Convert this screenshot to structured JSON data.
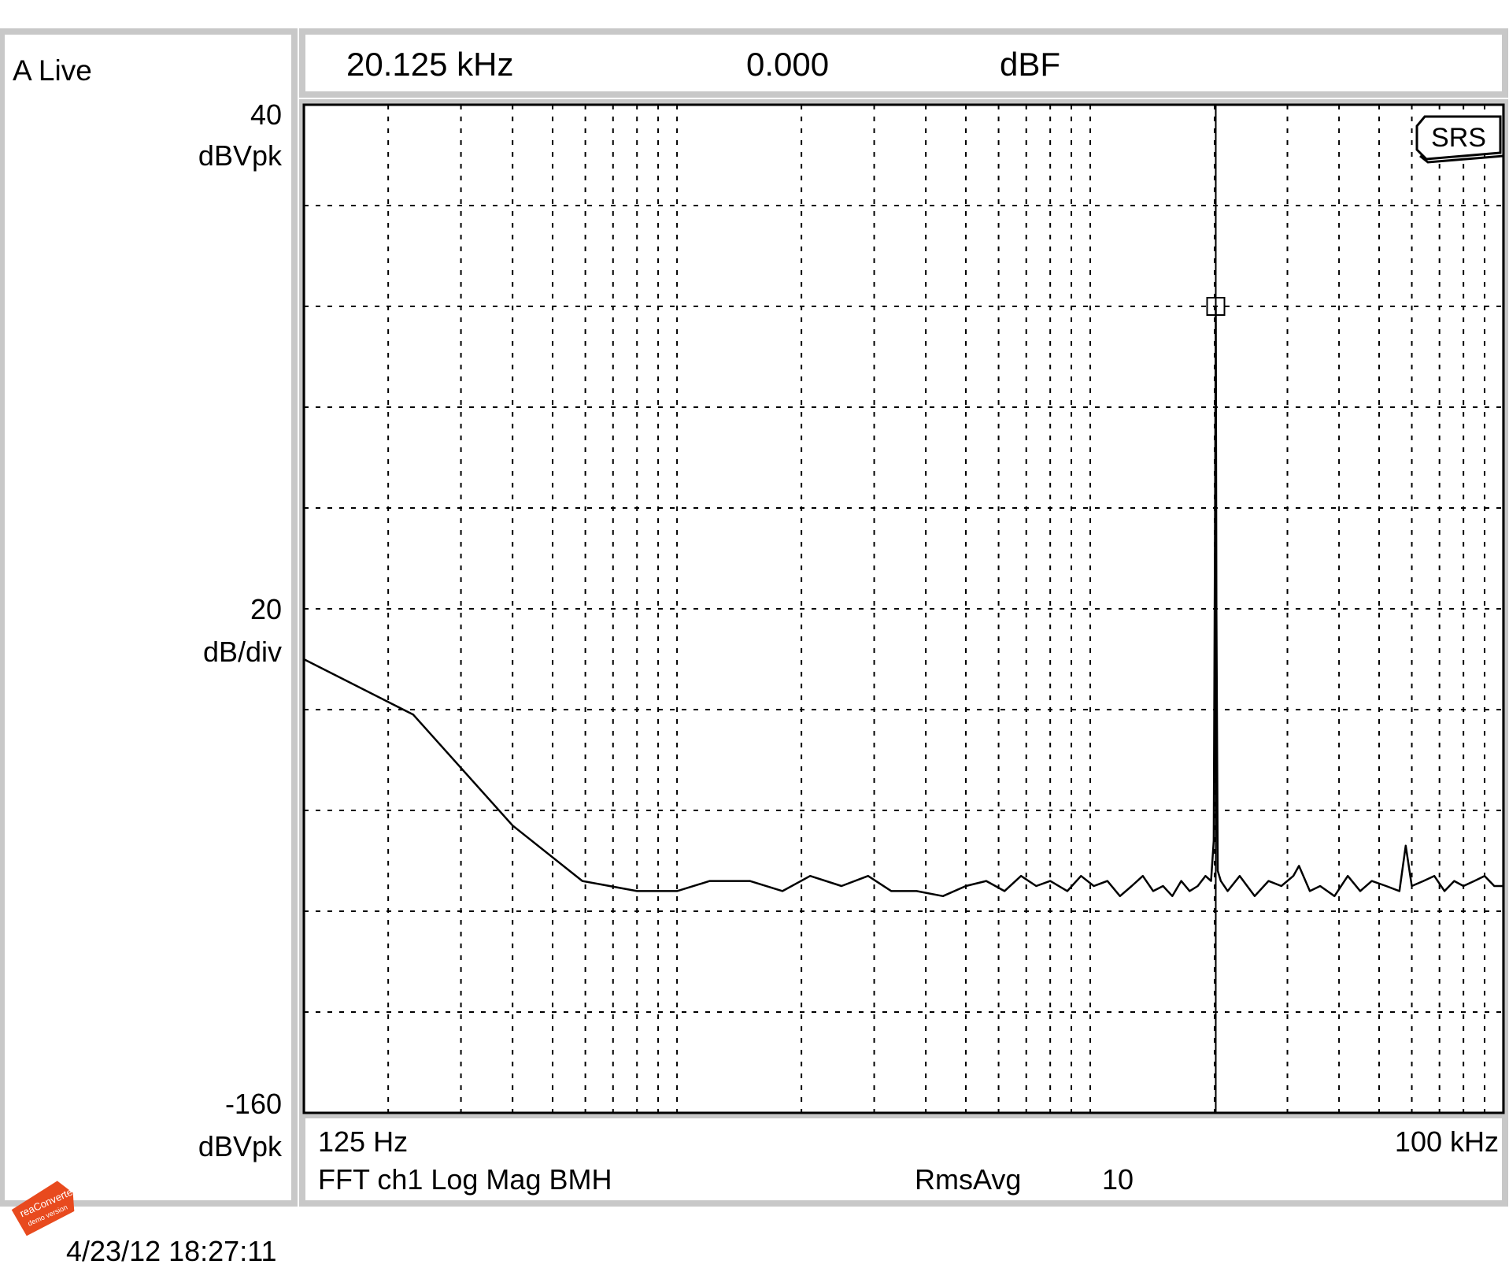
{
  "left_panel": {
    "mode_label": "A Live",
    "top_value": "40",
    "top_unit": "dBVpk",
    "div_value": "20",
    "div_unit": "dB/div",
    "bottom_value": "-160",
    "bottom_unit": "dBVpk"
  },
  "marker_readout": {
    "frequency": "20.125 kHz",
    "value": "0.000",
    "unit": "dBF"
  },
  "footer": {
    "start_freq": "125 Hz",
    "stop_freq": "100 kHz",
    "measurement": "FFT ch1 Log Mag BMH",
    "avg_label": "RmsAvg",
    "avg_count": "10"
  },
  "brand": "SRS",
  "watermark": {
    "line1": "reaConverter",
    "line2": "demo version"
  },
  "timestamp": "4/23/12  18:27:11",
  "colors": {
    "frame": "#c8c8c8",
    "trace": "#000000",
    "watermark": "#e84a1e"
  },
  "chart_data": {
    "type": "line",
    "title": "",
    "xlabel": "",
    "ylabel": "",
    "x_scale": "log",
    "xlim": [
      125,
      100000
    ],
    "ylim": [
      -160,
      40
    ],
    "grid": true,
    "marker": {
      "x": 20125,
      "y": 0.0
    },
    "series": [
      {
        "x": [
          125,
          230,
          400,
          590,
          800,
          1000,
          1200,
          1500,
          1800,
          2100,
          2500,
          2900,
          3300,
          3800,
          4400,
          5000,
          5600,
          6200,
          6800,
          7400,
          8000,
          8800,
          9500,
          10200,
          11000,
          11800,
          12600,
          13400,
          14200,
          15000,
          15800,
          16600,
          17400,
          18200,
          19000,
          19600,
          19900,
          20050,
          20125,
          20200,
          20350,
          20700,
          21500,
          23000,
          25000,
          27000,
          29000,
          31000,
          32000,
          34000,
          36000,
          39000,
          42000,
          45000,
          48000,
          52000,
          56000,
          58000,
          60000,
          64000,
          68000,
          72000,
          76000,
          80000,
          85000,
          90000,
          95000,
          100000
        ],
        "y": [
          -70,
          -81,
          -103,
          -114,
          -116,
          -116,
          -114,
          -114,
          -116,
          -113,
          -115,
          -113,
          -116,
          -116,
          -117,
          -115,
          -114,
          -116,
          -113,
          -115,
          -114,
          -116,
          -113,
          -115,
          -114,
          -117,
          -115,
          -113,
          -116,
          -115,
          -117,
          -114,
          -116,
          -115,
          -113,
          -114,
          -106,
          -40,
          0,
          -60,
          -112,
          -114,
          -116,
          -113,
          -117,
          -114,
          -115,
          -113,
          -111,
          -116,
          -115,
          -117,
          -113,
          -116,
          -114,
          -115,
          -116,
          -107,
          -115,
          -114,
          -113,
          -116,
          -114,
          -115,
          -114,
          -113,
          -115,
          -115
        ]
      }
    ]
  }
}
